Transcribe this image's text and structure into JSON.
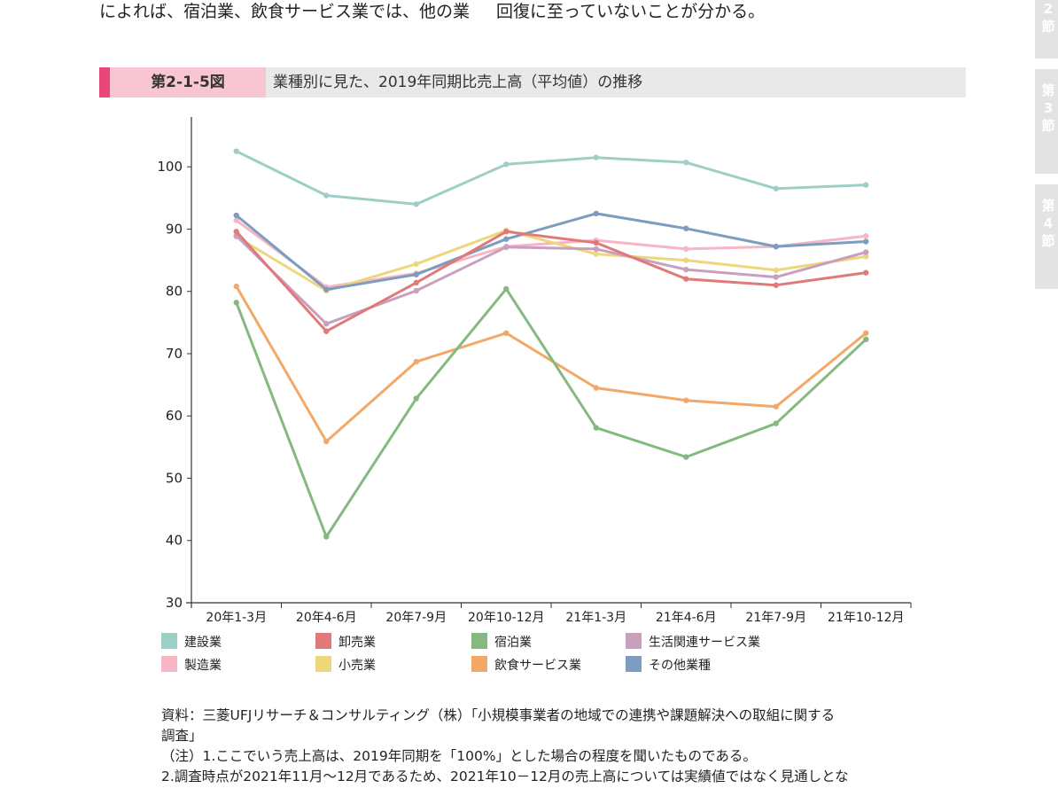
{
  "intro_text": {
    "left": "によれば、宿泊業、飲食サービス業では、他の業",
    "right": "回復に至っていないことが分かる。"
  },
  "side_tabs": [
    {
      "chars": [
        "2",
        "節"
      ]
    },
    {
      "chars": [
        "第",
        "3",
        "節"
      ]
    },
    {
      "chars": [
        "第",
        "4",
        "節"
      ]
    }
  ],
  "figure": {
    "label": "第2-1-5図",
    "title": "業種別に見た、2019年同期比売上高（平均値）の推移",
    "accent_color": "#e8477a",
    "label_bg": "#f7c6d2"
  },
  "chart_data": {
    "type": "line",
    "title": "",
    "xlabel": "",
    "ylabel": "",
    "ylim": [
      30,
      108
    ],
    "yticks": [
      30,
      40,
      50,
      60,
      70,
      80,
      90,
      100
    ],
    "categories": [
      "20年1-3月",
      "20年4-6月",
      "20年7-9月",
      "20年10-12月",
      "21年1-3月",
      "21年4-6月",
      "21年7-9月",
      "21年10-12月"
    ],
    "legend_position": "bottom",
    "grid": false,
    "series": [
      {
        "name": "製造業",
        "color": "#f6b6c3",
        "values": [
          91.4,
          80.7,
          82.9,
          87.2,
          88.2,
          86.8,
          87.2,
          88.9
        ]
      },
      {
        "name": "小売業",
        "color": "#ecd77c",
        "values": [
          88.8,
          80.1,
          84.4,
          89.8,
          86.0,
          85.0,
          83.4,
          85.6
        ]
      },
      {
        "name": "生活関連サービス業",
        "color": "#c89fbd",
        "values": [
          88.9,
          74.8,
          80.1,
          87.1,
          86.8,
          83.5,
          82.3,
          86.3
        ]
      },
      {
        "name": "その他業種",
        "color": "#7c9cc0",
        "values": [
          92.2,
          80.3,
          82.7,
          88.4,
          92.5,
          90.1,
          87.2,
          88.0
        ]
      },
      {
        "name": "卸売業",
        "color": "#e07a7a",
        "values": [
          89.6,
          73.6,
          81.4,
          89.6,
          87.8,
          82.0,
          81.0,
          83.0
        ]
      },
      {
        "name": "建設業",
        "color": "#9dcfc7",
        "values": [
          102.5,
          95.4,
          94.0,
          100.4,
          101.5,
          100.7,
          96.5,
          97.1
        ]
      },
      {
        "name": "飲食サービス業",
        "color": "#f2a968",
        "values": [
          80.8,
          55.9,
          68.7,
          73.3,
          64.5,
          62.5,
          61.5,
          73.3
        ]
      },
      {
        "name": "宿泊業",
        "color": "#84ba80",
        "values": [
          78.2,
          40.6,
          62.8,
          80.4,
          58.1,
          53.4,
          58.8,
          72.3
        ]
      }
    ]
  },
  "legend": [
    {
      "name": "建設業",
      "color": "#9dcfc7"
    },
    {
      "name": "卸売業",
      "color": "#e07a7a"
    },
    {
      "name": "宿泊業",
      "color": "#84ba80"
    },
    {
      "name": "生活関連サービス業",
      "color": "#c89fbd"
    },
    {
      "name": "製造業",
      "color": "#f6b6c3"
    },
    {
      "name": "小売業",
      "color": "#ecd77c"
    },
    {
      "name": "飲食サービス業",
      "color": "#f2a968"
    },
    {
      "name": "その他業種",
      "color": "#7c9cc0"
    }
  ],
  "notes": {
    "source_line1": "資料：三菱UFJリサーチ＆コンサルティング（株）「小規模事業者の地域での連携や課題解決への取組に関する",
    "source_line2": "調査」",
    "note1": "（注）1.ここでいう売上高は、2019年同期を「100%」とした場合の程度を聞いたものである。",
    "note2": "2.調査時点が2021年11月～12月であるため、2021年10－12月の売上高については実績値ではなく見通しとな"
  }
}
